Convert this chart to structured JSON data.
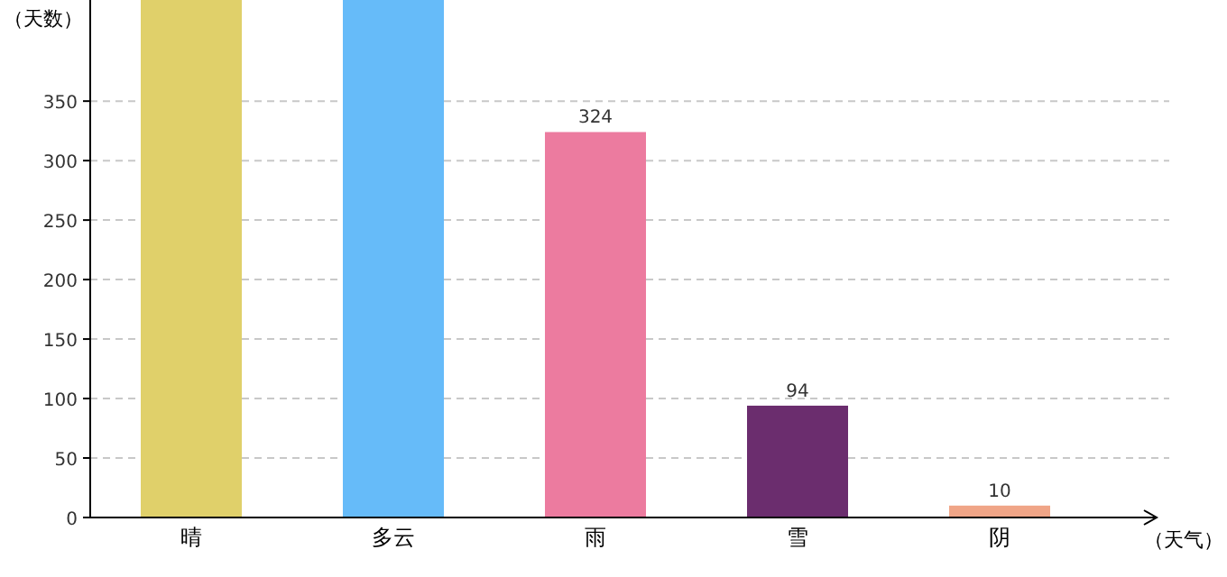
{
  "chart_data": {
    "type": "bar",
    "ylabel": "（天数）",
    "xlabel": "（天气）",
    "categories": [
      "晴",
      "多云",
      "雨",
      "雪",
      "阴"
    ],
    "values": [
      435,
      435,
      324,
      94,
      10
    ],
    "colors": [
      "#e0d06a",
      "#66bbf9",
      "#ec7b9f",
      "#6b2d6e",
      "#f0a587"
    ],
    "value_labels": [
      null,
      null,
      "324",
      "94",
      "10"
    ],
    "ylim": [
      0,
      435
    ],
    "yticks": [
      0,
      50,
      100,
      150,
      200,
      250,
      300,
      350
    ],
    "grid": "y"
  }
}
